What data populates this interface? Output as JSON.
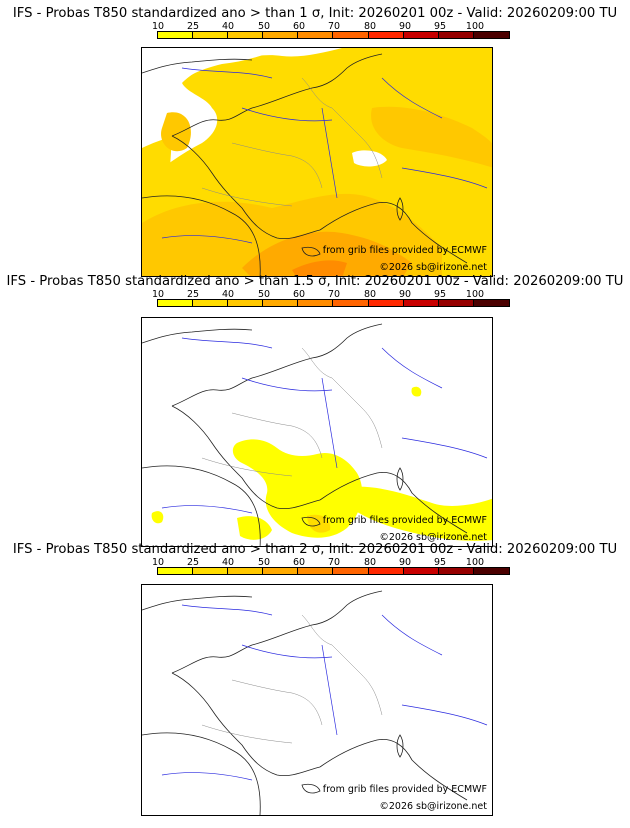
{
  "legend": {
    "ticks": [
      "10",
      "25",
      "40",
      "50",
      "60",
      "70",
      "80",
      "90",
      "95",
      "100"
    ],
    "colors": [
      "#ffff00",
      "#ffdc00",
      "#ffc800",
      "#ffaa00",
      "#ff8c00",
      "#ff6400",
      "#ff2800",
      "#c80000",
      "#960000",
      "#4b0000"
    ]
  },
  "panels": [
    {
      "title": "IFS - Probas T850  standardized ano > than 1 σ, Init: 20260201 00z - Valid: 20260209:00 TU",
      "credit_source": "from grib files provided by ECMWF",
      "credit_copyright": "©2026 sb@irizone.net"
    },
    {
      "title": "IFS - Probas T850  standardized ano > than 1.5 σ, Init: 20260201 00z - Valid: 20260209:00 TU",
      "credit_source": "from grib files provided by ECMWF",
      "credit_copyright": "©2026 sb@irizone.net"
    },
    {
      "title": "IFS - Probas T850  standardized ano > than 2 σ, Init: 20260201 00z - Valid: 20260209:00 TU",
      "credit_source": "from grib files provided by ECMWF",
      "credit_copyright": "©2026 sb@irizone.net"
    }
  ]
}
